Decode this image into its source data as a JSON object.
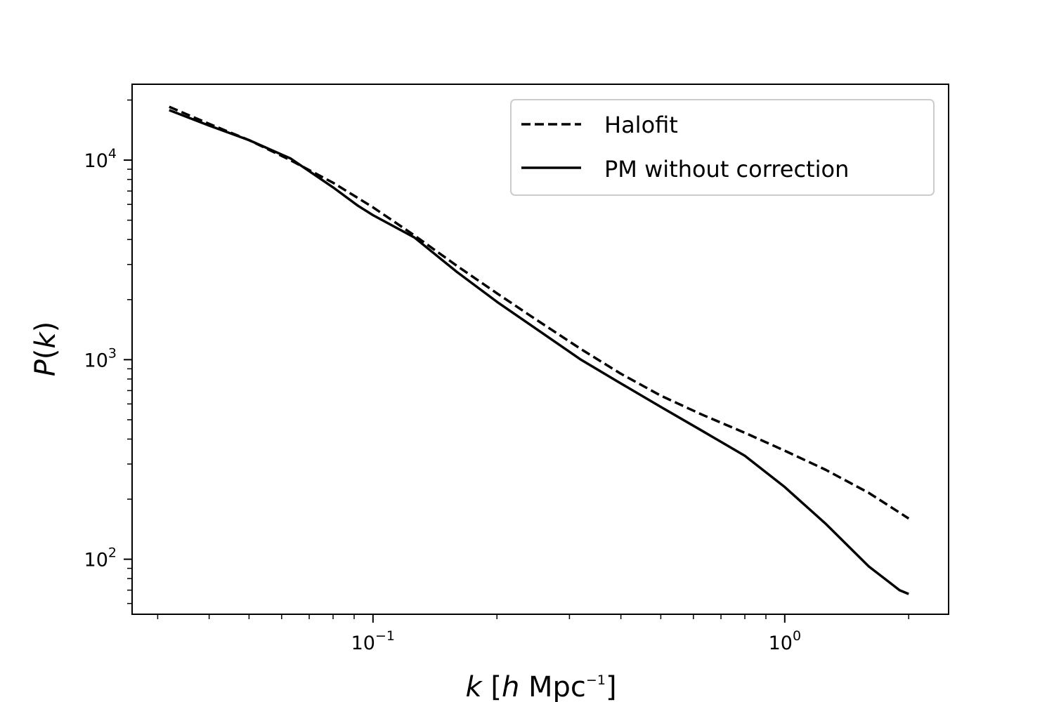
{
  "chart_data": {
    "type": "line",
    "title": "",
    "xlabel_parts": {
      "k": "k",
      "lb": " [",
      "h": "h",
      "unit": " Mpc",
      "exp": "−1",
      "rb": "]"
    },
    "ylabel_parts": {
      "P": "P",
      "lp": "(",
      "k": "k",
      "rp": ")"
    },
    "xscale": "log",
    "yscale": "log",
    "xlim": [
      0.026,
      2.5
    ],
    "ylim": [
      53,
      24000
    ],
    "grid": false,
    "legend_position": "top-right",
    "x_ticks": [
      {
        "value": 0.1,
        "base": "10",
        "exp": "−1"
      },
      {
        "value": 1,
        "base": "10",
        "exp": "0"
      }
    ],
    "y_ticks": [
      {
        "value": 100,
        "base": "10",
        "exp": "2"
      },
      {
        "value": 1000,
        "base": "10",
        "exp": "3"
      },
      {
        "value": 10000,
        "base": "10",
        "exp": "4"
      }
    ],
    "series": [
      {
        "name": "Halofit",
        "style": "dashed",
        "color": "#000000",
        "x": [
          0.032,
          0.04,
          0.05,
          0.063,
          0.08,
          0.1,
          0.126,
          0.16,
          0.2,
          0.25,
          0.32,
          0.4,
          0.5,
          0.63,
          0.8,
          1.0,
          1.26,
          1.6,
          2.0
        ],
        "y": [
          18500,
          15200,
          12600,
          10000,
          7700,
          5800,
          4200,
          2950,
          2150,
          1580,
          1130,
          850,
          660,
          530,
          430,
          350,
          280,
          215,
          160
        ]
      },
      {
        "name": "PM without correction",
        "style": "solid",
        "color": "#000000",
        "x": [
          0.032,
          0.04,
          0.05,
          0.063,
          0.08,
          0.092,
          0.1,
          0.126,
          0.16,
          0.2,
          0.25,
          0.32,
          0.4,
          0.5,
          0.63,
          0.8,
          1.0,
          1.26,
          1.6,
          1.9,
          2.0
        ],
        "y": [
          17800,
          14900,
          12600,
          10200,
          7300,
          5900,
          5300,
          4100,
          2750,
          1950,
          1420,
          1000,
          760,
          580,
          440,
          330,
          230,
          150,
          92,
          70,
          67
        ]
      }
    ]
  }
}
